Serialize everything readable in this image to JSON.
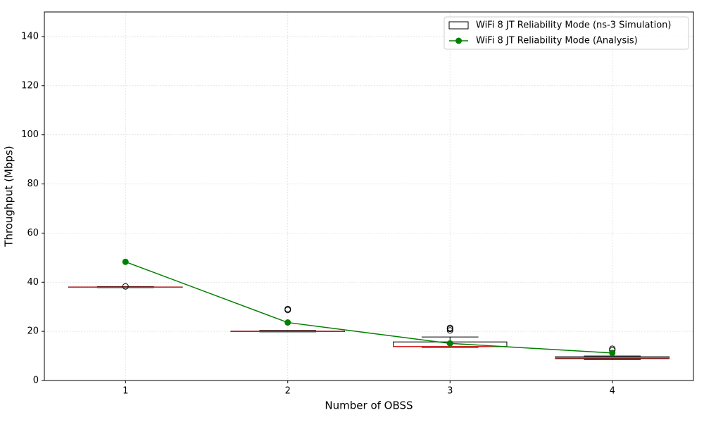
{
  "chart_data": {
    "type": "box",
    "xlabel": "Number of OBSS",
    "ylabel": "Throughput (Mbps)",
    "x": [
      1,
      2,
      3,
      4
    ],
    "xlim": [
      0.5,
      4.5
    ],
    "xticks": [
      1,
      2,
      3,
      4
    ],
    "ylim": [
      0,
      150
    ],
    "yticks": [
      0,
      20,
      40,
      60,
      80,
      100,
      120,
      140
    ],
    "grid": true,
    "legend": "upper right",
    "series": [
      {
        "name": "WiFi 8 JT Reliability Mode (ns-3 Simulation)",
        "color": "#000000",
        "median_color": "#d62728",
        "boxes": [
          {
            "whislo": 37.8,
            "q1": 37.9,
            "med": 38.0,
            "q3": 38.1,
            "whishi": 38.2,
            "fliers": [
              38.3
            ]
          },
          {
            "whislo": 19.8,
            "q1": 19.9,
            "med": 20.0,
            "q3": 20.1,
            "whishi": 20.4,
            "fliers": [
              28.7,
              29.1
            ]
          },
          {
            "whislo": 13.5,
            "q1": 13.8,
            "med": 13.8,
            "q3": 15.7,
            "whishi": 17.7,
            "fliers": [
              20.4,
              21.0,
              21.4
            ]
          },
          {
            "whislo": 8.5,
            "q1": 8.9,
            "med": 9.2,
            "q3": 9.7,
            "whishi": 10.0,
            "fliers": [
              12.3,
              12.9
            ]
          }
        ]
      },
      {
        "name": "WiFi 8 JT Reliability Mode (Analysis)",
        "color": "#008000",
        "type": "line",
        "values": [
          48.3,
          23.6,
          15.1,
          11.2
        ]
      }
    ]
  }
}
